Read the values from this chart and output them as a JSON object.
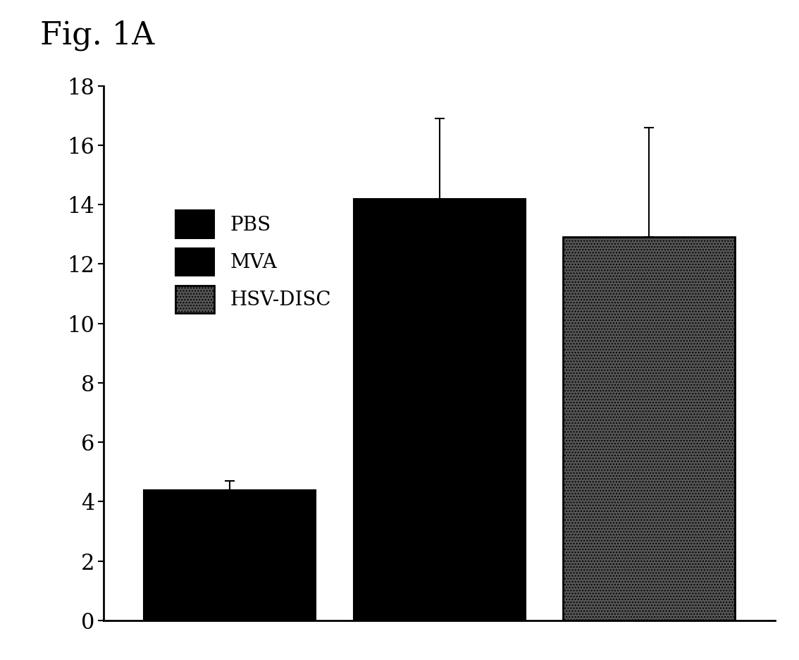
{
  "title": "Fig. 1A",
  "categories": [
    "PBS",
    "MVA",
    "HSV-DISC"
  ],
  "values": [
    4.4,
    14.2,
    12.9
  ],
  "errors": [
    0.3,
    2.7,
    3.7
  ],
  "ylim": [
    0,
    18
  ],
  "yticks": [
    0,
    2,
    4,
    6,
    8,
    10,
    12,
    14,
    16,
    18
  ],
  "background_color": "#ffffff",
  "bar_width": 0.82,
  "title_fontsize": 32,
  "tick_fontsize": 22
}
